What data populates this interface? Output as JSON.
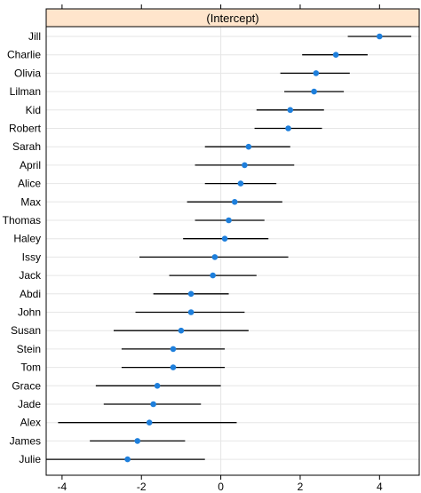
{
  "chart_data": {
    "type": "scatter",
    "variant": "dotplot-with-intervals",
    "panel_title": "(Intercept)",
    "xlabel": "",
    "ylabel": "",
    "xlim": [
      -4.4,
      5.0
    ],
    "x_ticks": [
      -4,
      -2,
      0,
      2,
      4
    ],
    "grid": "horizontal lines at each category, vertical line at 0",
    "categories": [
      "Jill",
      "Charlie",
      "Olivia",
      "Lilman",
      "Kid",
      "Robert",
      "Sarah",
      "April",
      "Alice",
      "Max",
      "Thomas",
      "Haley",
      "Issy",
      "Jack",
      "Abdi",
      "John",
      "Susan",
      "Stein",
      "Tom",
      "Grace",
      "Jade",
      "Alex",
      "James",
      "Julie"
    ],
    "estimates": [
      4.0,
      2.9,
      2.4,
      2.35,
      1.75,
      1.7,
      0.7,
      0.6,
      0.5,
      0.35,
      0.2,
      0.1,
      -0.15,
      -0.2,
      -0.75,
      -0.75,
      -1.0,
      -1.2,
      -1.2,
      -1.6,
      -1.7,
      -1.8,
      -2.1,
      -2.35
    ],
    "lower": [
      3.2,
      2.05,
      1.5,
      1.6,
      0.9,
      0.85,
      -0.4,
      -0.65,
      -0.4,
      -0.85,
      -0.65,
      -0.95,
      -2.05,
      -1.3,
      -1.7,
      -2.15,
      -2.7,
      -2.5,
      -2.5,
      -3.15,
      -2.95,
      -4.1,
      -3.3,
      -4.4
    ],
    "upper": [
      4.8,
      3.7,
      3.25,
      3.1,
      2.6,
      2.55,
      1.75,
      1.85,
      1.4,
      1.55,
      1.1,
      1.2,
      1.7,
      0.9,
      0.2,
      0.6,
      0.7,
      0.1,
      0.1,
      0.0,
      -0.5,
      0.4,
      -0.9,
      -0.4
    ],
    "colors": {
      "strip_bg": "#ffe5cc",
      "point": "#1e7fdc",
      "interval": "#000000",
      "grid": "#e6e6e6",
      "frame": "#000000"
    }
  }
}
